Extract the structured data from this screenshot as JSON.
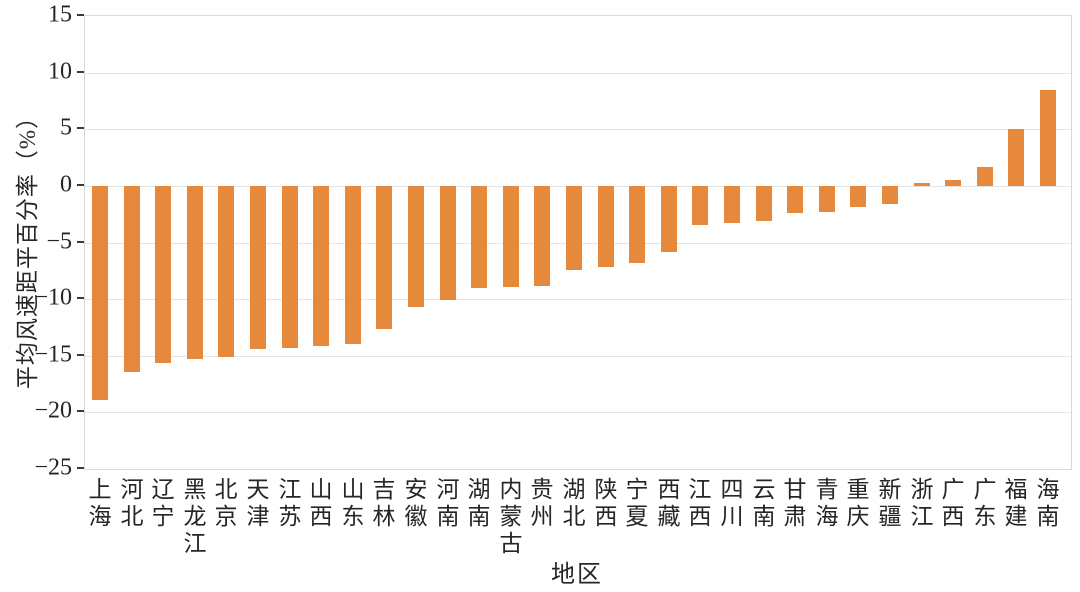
{
  "chart_data": {
    "type": "bar",
    "title": "",
    "xlabel": "地区",
    "ylabel": "平均风速距平百分率（%）",
    "categories": [
      "上海",
      "河北",
      "辽宁",
      "黑龙江",
      "北京",
      "天津",
      "江苏",
      "山西",
      "山东",
      "吉林",
      "安徽",
      "河南",
      "湖南",
      "内蒙古",
      "贵州",
      "湖北",
      "陕西",
      "宁夏",
      "西藏",
      "江西",
      "四川",
      "云南",
      "甘肃",
      "青海",
      "重庆",
      "新疆",
      "浙江",
      "广西",
      "广东",
      "福建",
      "海南"
    ],
    "values": [
      -18.9,
      -16.4,
      -15.6,
      -15.3,
      -15.1,
      -14.4,
      -14.3,
      -14.1,
      -14.0,
      -12.6,
      -10.7,
      -10.1,
      -9.0,
      -8.9,
      -8.8,
      -7.4,
      -7.2,
      -6.8,
      -5.8,
      -3.5,
      -3.3,
      -3.1,
      -2.4,
      -2.3,
      -1.9,
      -1.6,
      0.3,
      0.5,
      1.7,
      5.0,
      8.5
    ],
    "ylim": [
      -25,
      15
    ],
    "yticks": [
      15,
      10,
      5,
      0,
      -5,
      -10,
      -15,
      -20,
      -25
    ],
    "ytick_labels": [
      "15",
      "10",
      "5",
      "0",
      "−5",
      "−10",
      "−15",
      "−20",
      "−25"
    ],
    "bar_color": "#E7893C",
    "grid": true,
    "gridline_color": "#e5e5e5",
    "legend": null
  }
}
